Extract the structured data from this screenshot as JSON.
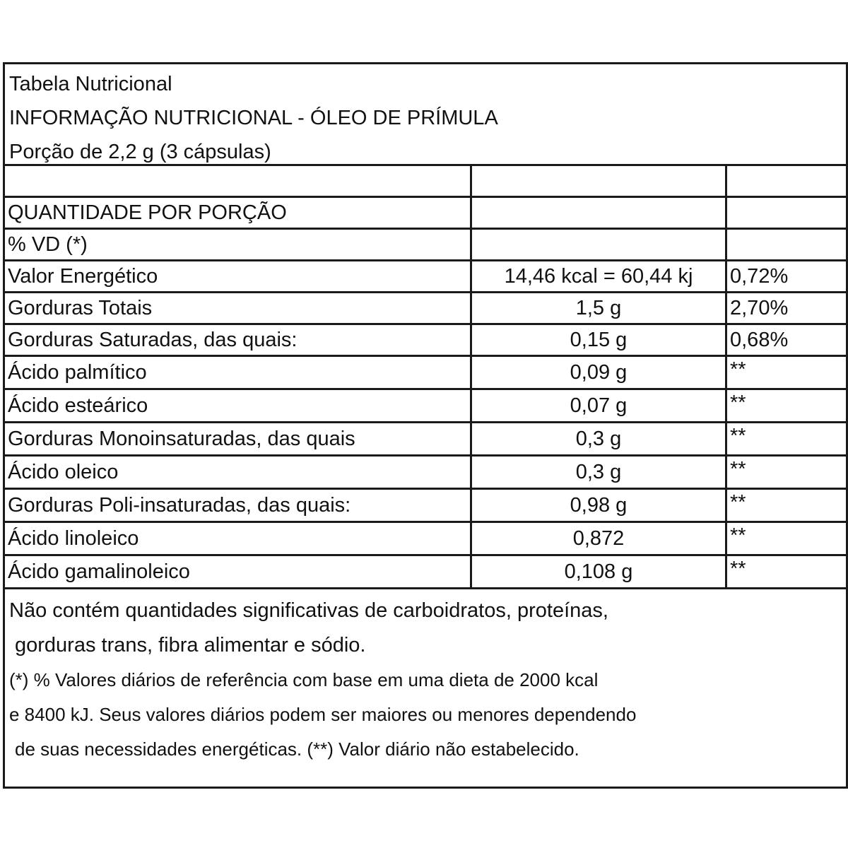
{
  "header": {
    "title": "Tabela Nutricional",
    "subtitle": "INFORMAÇÃO NUTRICIONAL - ÓLEO DE PRÍMULA",
    "serving": "Porção de 2,2 g (3 cápsulas)"
  },
  "table": {
    "header_rows": [
      {
        "label": "",
        "amount": "",
        "vd": ""
      },
      {
        "label": "QUANTIDADE POR PORÇÃO",
        "amount": "",
        "vd": ""
      },
      {
        "label": "% VD (*)",
        "amount": "",
        "vd": ""
      }
    ],
    "rows": [
      {
        "label": "Valor Energético",
        "amount": "14,46 kcal = 60,44 kj",
        "vd": "0,72%"
      },
      {
        "label": "Gorduras Totais",
        "amount": "1,5 g",
        "vd": "2,70%"
      },
      {
        "label": "Gorduras Saturadas, das quais:",
        "amount": "0,15 g",
        "vd": "0,68%"
      },
      {
        "label": "Ácido palmítico",
        "amount": "0,09 g",
        "vd": "**"
      },
      {
        "label": "Ácido esteárico",
        "amount": "0,07 g",
        "vd": "**"
      },
      {
        "label": "Gorduras Monoinsaturadas, das quais",
        "amount": "0,3 g",
        "vd": "**"
      },
      {
        "label": "Ácido oleico",
        "amount": "0,3 g",
        "vd": "**"
      },
      {
        "label": "Gorduras Poli-insaturadas, das quais:",
        "amount": "0,98 g",
        "vd": "**"
      },
      {
        "label": "Ácido linoleico",
        "amount": "0,872",
        "vd": "**"
      },
      {
        "label": "Ácido gamalinoleico",
        "amount": "0,108 g",
        "vd": "**"
      }
    ]
  },
  "footer": {
    "lines": [
      "Não contém quantidades significativas de carboidratos, proteínas,",
      " gorduras trans, fibra alimentar e sódio.",
      "(*) % Valores diários de referência com base em uma dieta de 2000 kcal",
      "e 8400 kJ. Seus valores diários podem ser maiores ou menores dependendo",
      " de suas necessidades energéticas. (**) Valor diário não estabelecido."
    ]
  }
}
